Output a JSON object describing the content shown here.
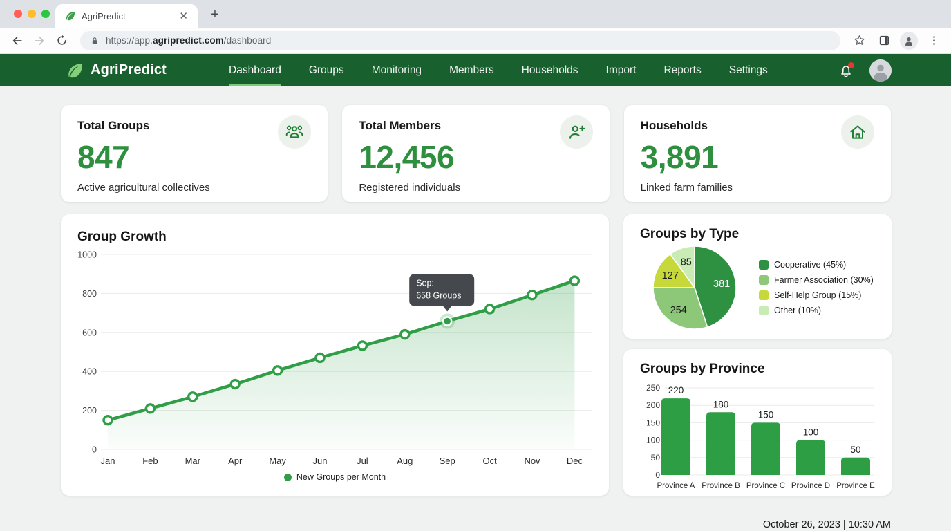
{
  "browser": {
    "tab_title": "AgriPredict",
    "url": {
      "prefix": "https://app.",
      "domain": "agripredict.com",
      "path": "/dashboard"
    }
  },
  "navbar": {
    "brand": "AgriPredict",
    "items": [
      {
        "label": "Dashboard",
        "active": true
      },
      {
        "label": "Groups",
        "active": false
      },
      {
        "label": "Monitoring",
        "active": false
      },
      {
        "label": "Members",
        "active": false
      },
      {
        "label": "Households",
        "active": false
      },
      {
        "label": "Import",
        "active": false
      },
      {
        "label": "Reports",
        "active": false
      },
      {
        "label": "Settings",
        "active": false
      }
    ],
    "notification_badge": true
  },
  "stats": [
    {
      "title": "Total Groups",
      "value": "847",
      "subtitle": "Active agricultural collectives",
      "icon": "people-group-icon"
    },
    {
      "title": "Total Members",
      "value": "12,456",
      "subtitle": "Registered individuals",
      "icon": "person-add-icon"
    },
    {
      "title": "Households",
      "value": "3,891",
      "subtitle": "Linked farm families",
      "icon": "home-icon"
    }
  ],
  "chart_data": [
    {
      "type": "line",
      "title": "Group Growth",
      "x": [
        "Jan",
        "Feb",
        "Mar",
        "Apr",
        "May",
        "Jun",
        "Jul",
        "Aug",
        "Sep",
        "Oct",
        "Nov",
        "Dec"
      ],
      "series": [
        {
          "name": "New Groups per Month",
          "values": [
            150,
            210,
            270,
            335,
            405,
            470,
            532,
            590,
            658,
            720,
            792,
            865
          ]
        }
      ],
      "ylim": [
        0,
        1000
      ],
      "yticks": [
        0,
        200,
        400,
        600,
        800,
        1000
      ],
      "grid": true,
      "area_fill": true,
      "line_color": "#2f9e47",
      "legend_position": "bottom",
      "tooltip": {
        "index": 8,
        "title": "Sep:",
        "value": "658 Groups"
      }
    },
    {
      "type": "pie",
      "title": "Groups by Type",
      "slices": [
        {
          "label": "Cooperative (45%)",
          "value": 381,
          "pct": 45,
          "color": "#2e9142",
          "label_color": "#ffffff"
        },
        {
          "label": "Farmer Association (30%)",
          "value": 254,
          "pct": 30,
          "color": "#8dc878"
        },
        {
          "label": "Self-Help Group (15%)",
          "value": 127,
          "pct": 15,
          "color": "#c7d83a"
        },
        {
          "label": "Other (10%)",
          "value": 85,
          "pct": 10,
          "color": "#c9ecb4"
        }
      ],
      "legend_position": "right"
    },
    {
      "type": "bar",
      "title": "Groups by Province",
      "categories": [
        "Province A",
        "Province B",
        "Province C",
        "Province D",
        "Province E"
      ],
      "values": [
        220,
        180,
        150,
        100,
        50
      ],
      "ylim": [
        0,
        250
      ],
      "yticks": [
        0,
        50,
        100,
        150,
        200,
        250
      ],
      "grid": true,
      "bar_color": "#2e9e44"
    }
  ],
  "footer": {
    "timestamp": "October 26, 2023 | 10:30 AM"
  },
  "colors": {
    "navbar_green": "#18612e",
    "accent_green": "#2e8f3e",
    "active_underline": "#7ec879",
    "tooltip_bg": "#3f4347",
    "notification_dot": "#e0392f"
  }
}
